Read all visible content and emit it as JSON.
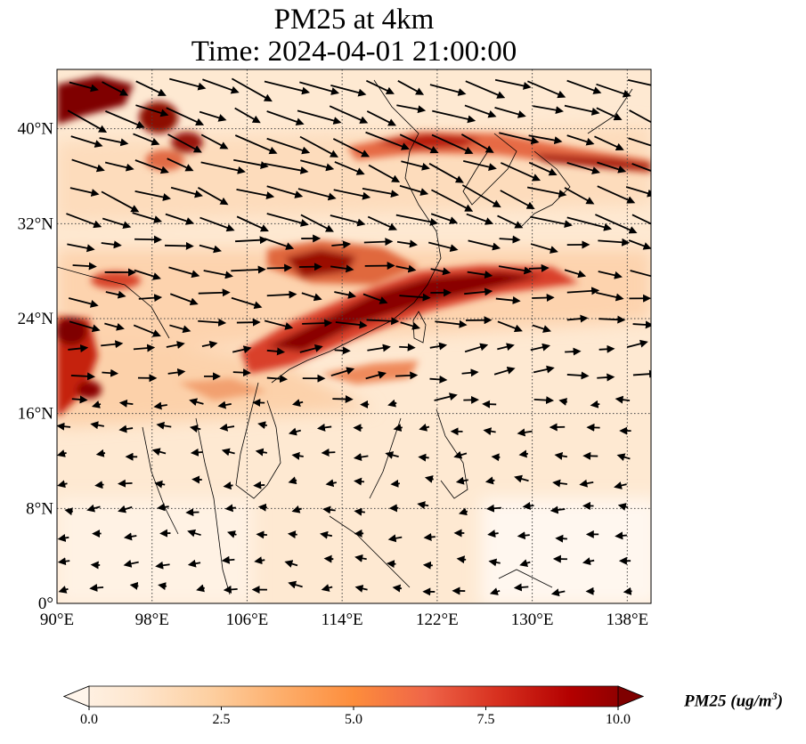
{
  "title": {
    "line1": "PM25 at 4km",
    "line2": "Time: 2024-04-01 21:00:00"
  },
  "map": {
    "lon_range": [
      90,
      140
    ],
    "lat_range": [
      0,
      45
    ],
    "lon_ticks": [
      {
        "value": 90,
        "label": "90°E"
      },
      {
        "value": 98,
        "label": "98°E"
      },
      {
        "value": 106,
        "label": "106°E"
      },
      {
        "value": 114,
        "label": "114°E"
      },
      {
        "value": 122,
        "label": "122°E"
      },
      {
        "value": 130,
        "label": "130°E"
      },
      {
        "value": 138,
        "label": "138°E"
      }
    ],
    "lat_ticks": [
      {
        "value": 0,
        "label": "0°"
      },
      {
        "value": 8,
        "label": "8°N"
      },
      {
        "value": 16,
        "label": "16°N"
      },
      {
        "value": 24,
        "label": "24°N"
      },
      {
        "value": 32,
        "label": "32°N"
      },
      {
        "value": 40,
        "label": "40°N"
      }
    ],
    "gridlines": true,
    "field": "PM25"
  },
  "colorbar": {
    "title": "PM25 (ug/m",
    "title_sup": "3",
    "title_end": ")",
    "min": 0,
    "max": 10,
    "extend": "both",
    "ticks": [
      {
        "value": 0,
        "label": "0.0"
      },
      {
        "value": 2.5,
        "label": "2.5"
      },
      {
        "value": 5,
        "label": "5.0"
      },
      {
        "value": 7.5,
        "label": "7.5"
      },
      {
        "value": 10,
        "label": "10.0"
      }
    ],
    "colors": [
      "#fff5eb",
      "#fee6ce",
      "#fdd0a2",
      "#fdae6b",
      "#fd8d3c",
      "#f16913",
      "#d94801",
      "#a63603",
      "#7f0000"
    ]
  }
}
